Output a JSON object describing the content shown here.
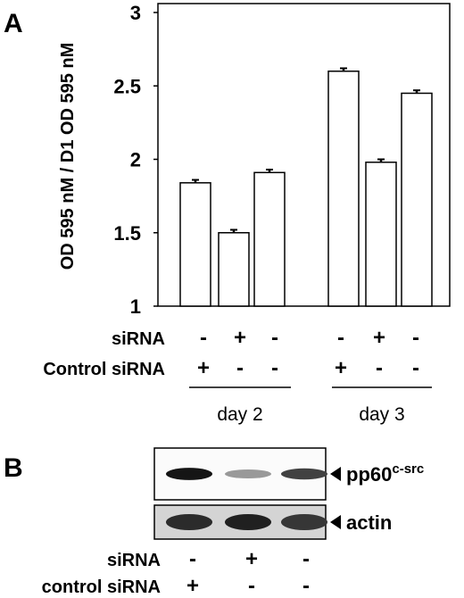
{
  "panel_a": {
    "letter": "A",
    "sign_rows": [
      {
        "label": "siRNA",
        "signs": [
          "-",
          "+",
          "-",
          "-",
          "+",
          "-"
        ]
      },
      {
        "label": "Control siRNA",
        "signs": [
          "+",
          "-",
          "-",
          "+",
          "-",
          "-"
        ]
      }
    ],
    "groups": [
      "day 2",
      "day 3"
    ]
  },
  "panel_b": {
    "letter": "B",
    "blots": [
      {
        "label": "pp60",
        "label_sup": "c-src",
        "band_intensity": [
          0.95,
          0.35,
          0.75
        ]
      },
      {
        "label": "actin",
        "label_sup": "",
        "band_intensity": [
          0.85,
          0.9,
          0.8
        ]
      }
    ],
    "sign_rows": [
      {
        "label": "siRNA",
        "signs": [
          "-",
          "+",
          "-"
        ]
      },
      {
        "label": "control siRNA",
        "signs": [
          "+",
          "-",
          "-"
        ]
      }
    ]
  },
  "chart_data": {
    "type": "bar",
    "categories": [
      "day 2 control siRNA",
      "day 2 siRNA",
      "day 2 untreated",
      "day 3 control siRNA",
      "day 3 siRNA",
      "day 3 untreated"
    ],
    "values": [
      1.84,
      1.5,
      1.91,
      2.6,
      1.98,
      2.45
    ],
    "errors": [
      0.02,
      0.02,
      0.02,
      0.02,
      0.02,
      0.02
    ],
    "ylabel": "OD 595 nM / D1 OD 595 nM",
    "xlabel": "",
    "ylim": [
      1,
      3
    ],
    "yticks": [
      "1",
      "1.5",
      "2",
      "2.5",
      "3"
    ],
    "grid": false
  }
}
